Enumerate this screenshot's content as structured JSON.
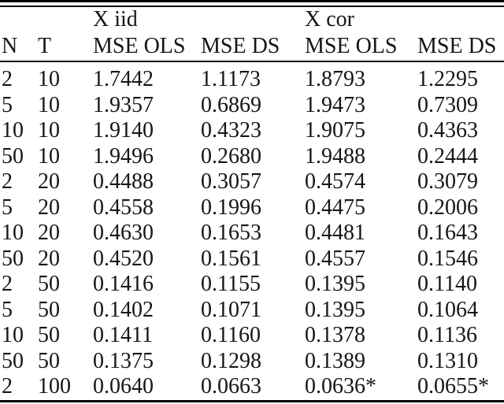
{
  "table": {
    "group_headers": [
      {
        "label": "",
        "span": 2
      },
      {
        "label": "X iid",
        "span": 2
      },
      {
        "label": "X cor",
        "span": 2
      }
    ],
    "columns": [
      "N",
      "T",
      "MSE OLS",
      "MSE DS",
      "MSE OLS",
      "MSE DS"
    ],
    "rows": [
      [
        "2",
        "10",
        "1.7442",
        "1.1173",
        "1.8793",
        "1.2295"
      ],
      [
        "5",
        "10",
        "1.9357",
        "0.6869",
        "1.9473",
        "0.7309"
      ],
      [
        "10",
        "10",
        "1.9140",
        "0.4323",
        "1.9075",
        "0.4363"
      ],
      [
        "50",
        "10",
        "1.9496",
        "0.2680",
        "1.9488",
        "0.2444"
      ],
      [
        "2",
        "20",
        "0.4488",
        "0.3057",
        "0.4574",
        "0.3079"
      ],
      [
        "5",
        "20",
        "0.4558",
        "0.1996",
        "0.4475",
        "0.2006"
      ],
      [
        "10",
        "20",
        "0.4630",
        "0.1653",
        "0.4481",
        "0.1643"
      ],
      [
        "50",
        "20",
        "0.4520",
        "0.1561",
        "0.4557",
        "0.1546"
      ],
      [
        "2",
        "50",
        "0.1416",
        "0.1155",
        "0.1395",
        "0.1140"
      ],
      [
        "5",
        "50",
        "0.1402",
        "0.1071",
        "0.1395",
        "0.1064"
      ],
      [
        "10",
        "50",
        "0.1411",
        "0.1160",
        "0.1378",
        "0.1136"
      ],
      [
        "50",
        "50",
        "0.1375",
        "0.1298",
        "0.1389",
        "0.1310"
      ],
      [
        "2",
        "100",
        "0.0640",
        "0.0663",
        "0.0636*",
        "0.0655*"
      ]
    ],
    "colors": {
      "text": "#161616",
      "rule": "#000000",
      "background": "#ffffff"
    }
  }
}
